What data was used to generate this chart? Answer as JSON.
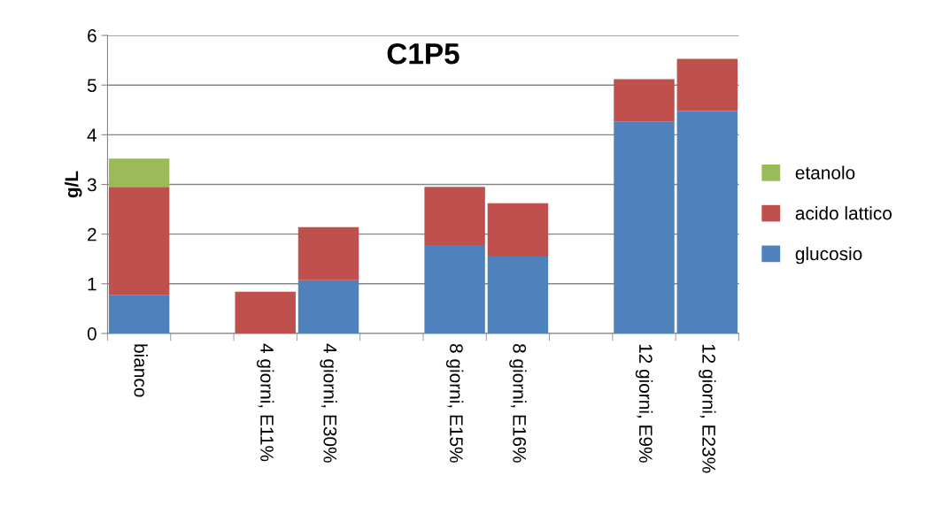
{
  "chart_data": {
    "type": "bar",
    "title": "C1P5",
    "ylabel": "g/L",
    "stacked": true,
    "categories": [
      "bianco",
      null,
      "4 giorni, E11%",
      "4 giorni, E30%",
      null,
      "8 giorni, E15%",
      "8 giorni, E16%",
      null,
      "12 giorni, E9%",
      "12 giorni, E23%"
    ],
    "series": [
      {
        "name": "glucosio",
        "color": "#4f81bd",
        "values": [
          0.77,
          null,
          0,
          1.07,
          null,
          1.78,
          1.55,
          null,
          4.27,
          4.48
        ]
      },
      {
        "name": "acido lattico",
        "color": "#c0504d",
        "values": [
          2.18,
          null,
          0.84,
          1.07,
          null,
          1.17,
          1.07,
          null,
          0.85,
          1.05
        ]
      },
      {
        "name": "etanolo",
        "color": "#9bbb59",
        "values": [
          0.57,
          null,
          null,
          null,
          null,
          null,
          null,
          null,
          null,
          null
        ]
      }
    ],
    "ylim": [
      0,
      6
    ],
    "yticks": [
      0,
      1,
      2,
      3,
      4,
      5,
      6
    ],
    "grid": "y",
    "legend": "right"
  }
}
